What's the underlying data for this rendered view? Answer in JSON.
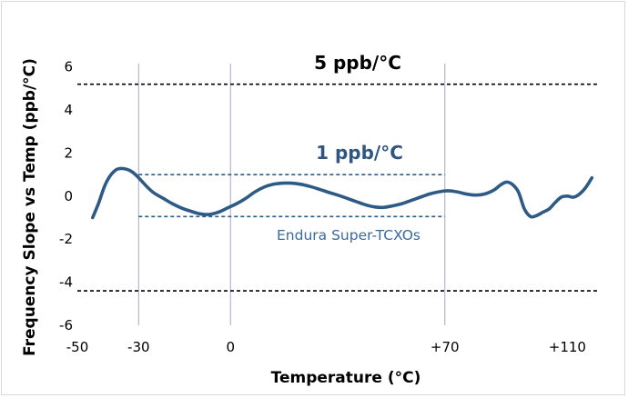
{
  "chart_data": {
    "type": "line",
    "xlabel": "Temperature (°C)",
    "ylabel": "Frequency Slope vs Temp (ppb/°C)",
    "xlim": [
      -50,
      120
    ],
    "ylim": [
      -6,
      7
    ],
    "x_ticks": [
      -50,
      -30,
      0,
      70,
      110
    ],
    "x_tick_labels": [
      "-50",
      "-30",
      "0",
      "+70",
      "+110"
    ],
    "y_ticks": [
      -6,
      -4,
      -2,
      0,
      2,
      4,
      6
    ],
    "y_tick_labels": [
      "-6",
      "-4",
      "-2",
      "0",
      "2",
      "4",
      "6"
    ],
    "vertical_gridlines": [
      -30,
      0,
      70
    ],
    "grid": false,
    "colors": {
      "series": "#2e5b86",
      "inner_limits": "#2e5b86",
      "outer_limits": "#000000",
      "gridline": "#a7a7c9"
    },
    "series": [
      {
        "x": [
          -45,
          -43,
          -41,
          -39,
          -37,
          -35,
          -33,
          -31,
          -29,
          -27,
          -25,
          -22,
          -19,
          -16,
          -13,
          -10,
          -7,
          -4,
          -1,
          2,
          5,
          8,
          11,
          14,
          17,
          20,
          23,
          26,
          29,
          32,
          35,
          38,
          41,
          44,
          47,
          50,
          53,
          56,
          59,
          62,
          65,
          68,
          71,
          74,
          77,
          80,
          83,
          86,
          88,
          90,
          92,
          94,
          96,
          98,
          100,
          102,
          104,
          106,
          108,
          110,
          112,
          114,
          116,
          118
        ],
        "y": [
          -1.0,
          -0.3,
          0.5,
          1.0,
          1.25,
          1.28,
          1.2,
          1.0,
          0.7,
          0.4,
          0.15,
          -0.1,
          -0.35,
          -0.55,
          -0.7,
          -0.82,
          -0.85,
          -0.75,
          -0.55,
          -0.35,
          -0.1,
          0.2,
          0.42,
          0.55,
          0.6,
          0.6,
          0.55,
          0.45,
          0.32,
          0.18,
          0.05,
          -0.1,
          -0.25,
          -0.4,
          -0.5,
          -0.52,
          -0.45,
          -0.35,
          -0.2,
          -0.05,
          0.1,
          0.2,
          0.25,
          0.2,
          0.1,
          0.05,
          0.1,
          0.28,
          0.5,
          0.65,
          0.55,
          0.2,
          -0.6,
          -0.95,
          -0.9,
          -0.75,
          -0.6,
          -0.3,
          -0.05,
          0.0,
          -0.05,
          0.1,
          0.4,
          0.85
        ]
      }
    ],
    "limit_lines": [
      {
        "y": 5.2,
        "x_start": -50,
        "x_end": 120,
        "style": "dashed",
        "color": "#000000"
      },
      {
        "y": -4.4,
        "x_start": -50,
        "x_end": 120,
        "style": "dashed",
        "color": "#000000"
      },
      {
        "y": 1.0,
        "x_start": -30,
        "x_end": 70,
        "style": "dashed",
        "color": "#2e5b86"
      },
      {
        "y": -0.95,
        "x_start": -30,
        "x_end": 70,
        "style": "dashed",
        "color": "#2e5b86"
      }
    ],
    "annotations": {
      "outer_label": "5 ppb/°C",
      "inner_label": "1 ppb/°C",
      "product_label": "Endura Super-TCXOs"
    }
  }
}
